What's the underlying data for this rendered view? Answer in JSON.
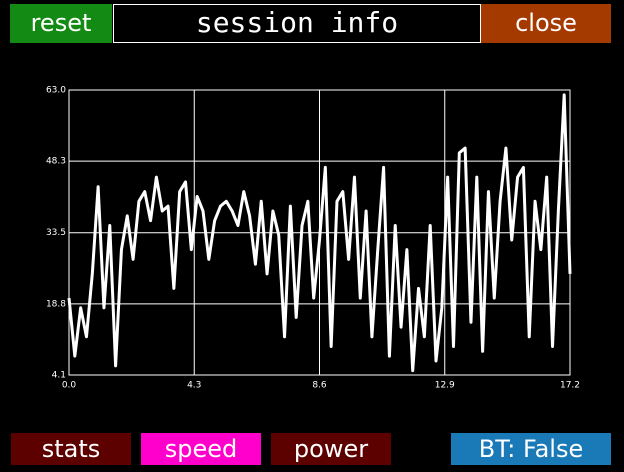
{
  "header": {
    "title": "session info",
    "buttons": [
      "reset",
      "close"
    ]
  },
  "footer": {
    "buttons": [
      "stats",
      "speed",
      "power",
      "BT: False"
    ]
  },
  "chart_data": {
    "type": "line",
    "grid": true,
    "x": [
      0,
      0.2,
      0.4,
      0.6,
      0.8,
      1.0,
      1.2,
      1.4,
      1.6,
      1.8,
      2.0,
      2.2,
      2.4,
      2.6,
      2.8,
      3.0,
      3.2,
      3.4,
      3.6,
      3.8,
      4.0,
      4.2,
      4.4,
      4.6,
      4.8,
      5.0,
      5.2,
      5.4,
      5.6,
      5.8,
      6.0,
      6.2,
      6.4,
      6.6,
      6.8,
      7.0,
      7.2,
      7.4,
      7.6,
      7.8,
      8.0,
      8.2,
      8.4,
      8.6,
      8.8,
      9.0,
      9.2,
      9.4,
      9.6,
      9.8,
      10.0,
      10.2,
      10.4,
      10.6,
      10.8,
      11.0,
      11.2,
      11.4,
      11.6,
      11.8,
      12.0,
      12.2,
      12.4,
      12.6,
      12.8,
      13.0,
      13.2,
      13.4,
      13.6,
      13.8,
      14.0,
      14.2,
      14.4,
      14.6,
      14.8,
      15.0,
      15.2,
      15.4,
      15.6,
      15.8,
      16.0,
      16.2,
      16.4,
      16.6,
      16.8,
      17.0,
      17.2
    ],
    "series": [
      {
        "color": "#ffffff",
        "values": [
          20,
          8,
          18,
          12,
          25,
          43,
          18,
          35,
          6,
          30,
          37,
          28,
          40,
          42,
          36,
          45,
          38,
          39,
          22,
          42,
          44,
          30,
          41,
          38,
          28,
          36,
          39,
          40,
          38,
          35,
          42,
          37,
          27,
          40,
          25,
          38,
          33,
          12,
          39,
          16,
          35,
          40,
          20,
          32,
          47,
          10,
          40,
          42,
          28,
          45,
          20,
          38,
          12,
          30,
          47,
          8,
          35,
          14,
          30,
          5,
          22,
          12,
          35,
          7,
          18,
          45,
          10,
          50,
          51,
          15,
          45,
          9,
          42,
          20,
          40,
          51,
          32,
          45,
          47,
          12,
          40,
          30,
          45,
          10,
          38,
          62,
          25
        ]
      }
    ],
    "xlim": [
      0,
      17.2
    ],
    "xticks": [
      {
        "value": 0,
        "label": "0.0"
      },
      4.3,
      8.6,
      12.9,
      17.2
    ],
    "ylim": [
      4.1,
      63
    ],
    "yticks": [
      4.1,
      18.8,
      33.5,
      48.3,
      {
        "value": 63,
        "label": "63.0"
      }
    ]
  }
}
